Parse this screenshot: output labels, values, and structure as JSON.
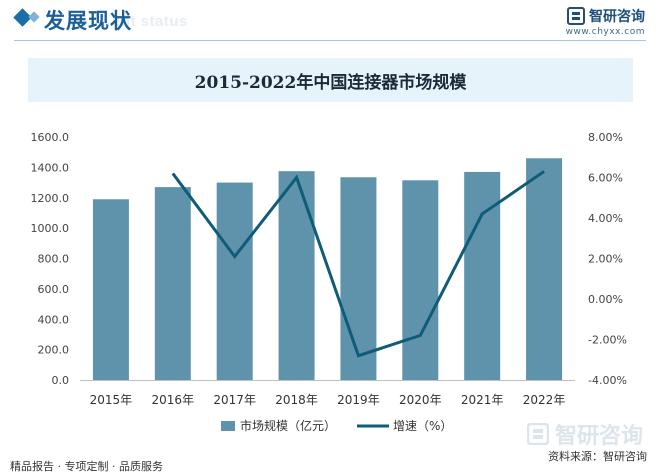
{
  "header": {
    "title": "发展现状",
    "ghost_text": "ent status",
    "brand_name": "智研咨询",
    "brand_url": "www.chyxx.com"
  },
  "footer": {
    "left_text": "精品报告 · 专项定制 · 品质服务",
    "source_text": "资料来源：智研咨询",
    "watermark_logo": "智研咨询"
  },
  "colors": {
    "bar": "#5f93ac",
    "line": "#0f5c78",
    "header_accent": "#1b6fa8",
    "title_band": "#e7f3fb"
  },
  "chart_data": {
    "type": "bar",
    "title": "2015-2022年中国连接器市场规模",
    "categories": [
      "2015年",
      "2016年",
      "2017年",
      "2018年",
      "2019年",
      "2020年",
      "2021年",
      "2022年"
    ],
    "series": [
      {
        "name": "市场规模（亿元）",
        "type": "bar",
        "axis": "left",
        "values": [
          1190,
          1270,
          1300,
          1375,
          1335,
          1315,
          1370,
          1460
        ]
      },
      {
        "name": "增速（%）",
        "type": "line",
        "axis": "right",
        "values": [
          null,
          6.2,
          2.1,
          6.0,
          -2.8,
          -1.8,
          4.2,
          6.3
        ]
      }
    ],
    "y_left": {
      "min": 0,
      "max": 1600,
      "ticks": [
        "0.0",
        "200.0",
        "400.0",
        "600.0",
        "800.0",
        "1000.0",
        "1200.0",
        "1400.0",
        "1600.0"
      ]
    },
    "y_right": {
      "min": -4,
      "max": 8,
      "ticks": [
        "-4.00%",
        "-2.00%",
        "0.00%",
        "2.00%",
        "4.00%",
        "6.00%",
        "8.00%"
      ]
    },
    "grid": false,
    "legend_position": "bottom"
  }
}
